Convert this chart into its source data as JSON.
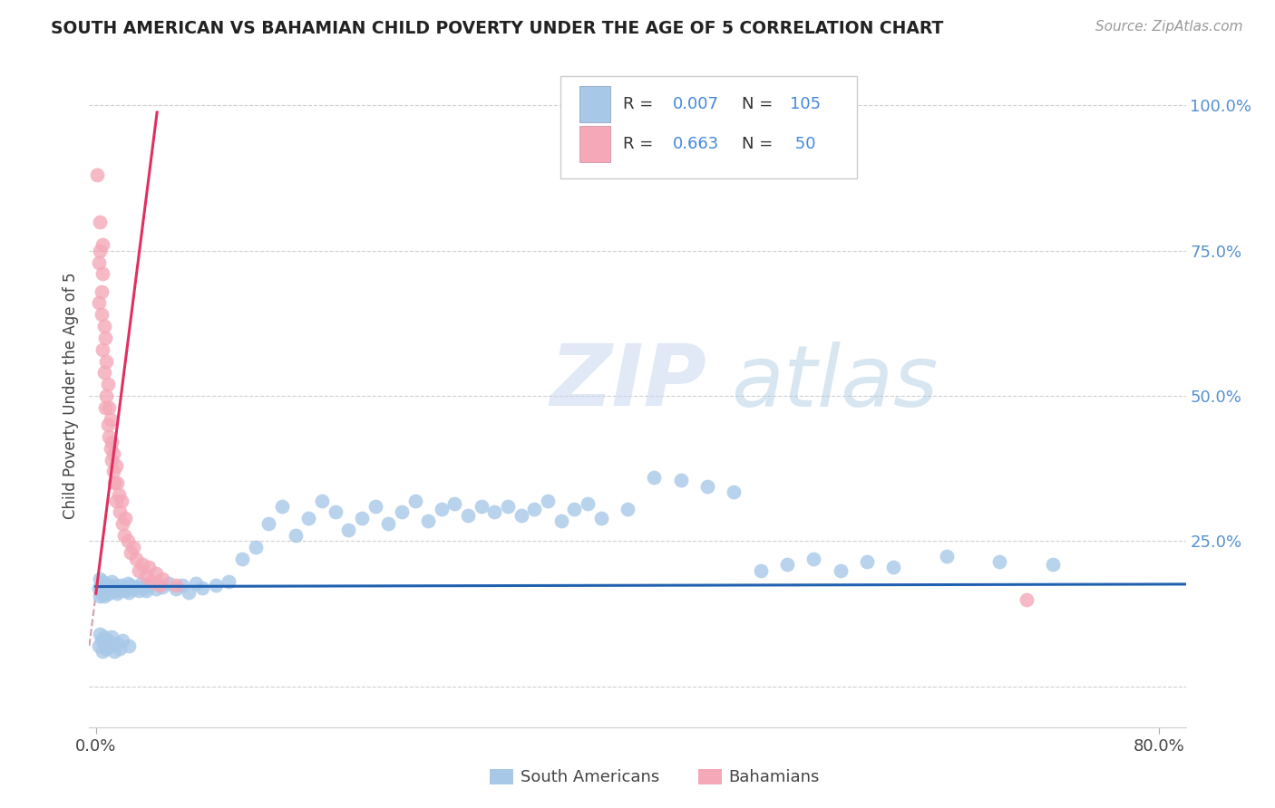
{
  "title": "SOUTH AMERICAN VS BAHAMIAN CHILD POVERTY UNDER THE AGE OF 5 CORRELATION CHART",
  "source": "Source: ZipAtlas.com",
  "ylabel": "Child Poverty Under the Age of 5",
  "xlim": [
    -0.005,
    0.82
  ],
  "ylim": [
    -0.07,
    1.07
  ],
  "xticks": [
    0.0,
    0.8
  ],
  "xticklabels": [
    "0.0%",
    "80.0%"
  ],
  "yticks_right": [
    0.0,
    0.25,
    0.5,
    0.75,
    1.0
  ],
  "yticklabels_right": [
    "",
    "25.0%",
    "50.0%",
    "75.0%",
    "100.0%"
  ],
  "blue_color": "#a8c8e8",
  "pink_color": "#f4a8b8",
  "blue_line_color": "#2060b0",
  "pink_line_color": "#e03060",
  "dash_line_color": "#d0a0b0",
  "watermark_zip": "ZIP",
  "watermark_atlas": "atlas",
  "background_color": "#ffffff",
  "grid_color": "#d0d0d0",
  "south_americans_x": [
    0.002,
    0.003,
    0.003,
    0.004,
    0.004,
    0.005,
    0.005,
    0.006,
    0.006,
    0.007,
    0.007,
    0.008,
    0.008,
    0.009,
    0.01,
    0.01,
    0.011,
    0.012,
    0.013,
    0.014,
    0.015,
    0.016,
    0.017,
    0.018,
    0.019,
    0.02,
    0.021,
    0.022,
    0.024,
    0.025,
    0.026,
    0.028,
    0.03,
    0.032,
    0.034,
    0.036,
    0.038,
    0.04,
    0.045,
    0.05,
    0.055,
    0.06,
    0.065,
    0.07,
    0.075,
    0.08,
    0.09,
    0.1,
    0.11,
    0.12,
    0.13,
    0.14,
    0.15,
    0.16,
    0.17,
    0.18,
    0.19,
    0.2,
    0.21,
    0.22,
    0.23,
    0.24,
    0.25,
    0.26,
    0.27,
    0.28,
    0.29,
    0.3,
    0.31,
    0.32,
    0.33,
    0.34,
    0.35,
    0.36,
    0.37,
    0.38,
    0.4,
    0.42,
    0.44,
    0.46,
    0.48,
    0.5,
    0.52,
    0.54,
    0.56,
    0.58,
    0.6,
    0.64,
    0.68,
    0.72,
    0.002,
    0.003,
    0.004,
    0.005,
    0.006,
    0.007,
    0.008,
    0.009,
    0.01,
    0.012,
    0.014,
    0.016,
    0.018,
    0.02,
    0.025
  ],
  "south_americans_y": [
    0.17,
    0.185,
    0.155,
    0.175,
    0.16,
    0.18,
    0.165,
    0.175,
    0.155,
    0.17,
    0.16,
    0.175,
    0.165,
    0.17,
    0.16,
    0.175,
    0.165,
    0.18,
    0.17,
    0.165,
    0.175,
    0.16,
    0.17,
    0.165,
    0.175,
    0.168,
    0.172,
    0.165,
    0.178,
    0.162,
    0.175,
    0.168,
    0.172,
    0.165,
    0.178,
    0.17,
    0.165,
    0.175,
    0.168,
    0.172,
    0.178,
    0.168,
    0.175,
    0.162,
    0.178,
    0.17,
    0.175,
    0.18,
    0.22,
    0.24,
    0.28,
    0.31,
    0.26,
    0.29,
    0.32,
    0.3,
    0.27,
    0.29,
    0.31,
    0.28,
    0.3,
    0.32,
    0.285,
    0.305,
    0.315,
    0.295,
    0.31,
    0.3,
    0.31,
    0.295,
    0.305,
    0.32,
    0.285,
    0.305,
    0.315,
    0.29,
    0.305,
    0.36,
    0.355,
    0.345,
    0.335,
    0.2,
    0.21,
    0.22,
    0.2,
    0.215,
    0.205,
    0.225,
    0.215,
    0.21,
    0.07,
    0.09,
    0.08,
    0.06,
    0.085,
    0.075,
    0.065,
    0.08,
    0.07,
    0.085,
    0.06,
    0.075,
    0.065,
    0.08,
    0.07
  ],
  "bahamians_x": [
    0.001,
    0.002,
    0.002,
    0.003,
    0.003,
    0.004,
    0.004,
    0.005,
    0.005,
    0.005,
    0.006,
    0.006,
    0.007,
    0.007,
    0.008,
    0.008,
    0.009,
    0.009,
    0.01,
    0.01,
    0.011,
    0.011,
    0.012,
    0.012,
    0.013,
    0.013,
    0.014,
    0.015,
    0.015,
    0.016,
    0.017,
    0.018,
    0.019,
    0.02,
    0.021,
    0.022,
    0.024,
    0.026,
    0.028,
    0.03,
    0.032,
    0.035,
    0.038,
    0.04,
    0.042,
    0.045,
    0.048,
    0.05,
    0.06,
    0.7
  ],
  "bahamians_y": [
    0.88,
    0.66,
    0.73,
    0.75,
    0.8,
    0.68,
    0.64,
    0.71,
    0.58,
    0.76,
    0.62,
    0.54,
    0.6,
    0.48,
    0.56,
    0.5,
    0.52,
    0.45,
    0.48,
    0.43,
    0.41,
    0.46,
    0.39,
    0.42,
    0.37,
    0.4,
    0.35,
    0.38,
    0.32,
    0.35,
    0.33,
    0.3,
    0.32,
    0.28,
    0.26,
    0.29,
    0.25,
    0.23,
    0.24,
    0.22,
    0.2,
    0.21,
    0.19,
    0.205,
    0.18,
    0.195,
    0.175,
    0.185,
    0.175,
    0.15
  ],
  "blue_trend_y_intercept": 0.172,
  "blue_trend_slope": 0.005,
  "pink_trend_slope": 18.0,
  "pink_trend_intercept": 0.16
}
